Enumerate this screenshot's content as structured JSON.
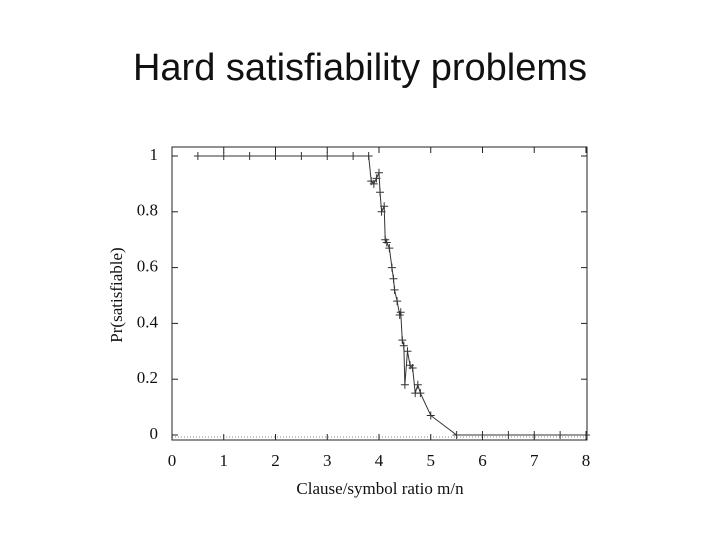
{
  "chart_data": {
    "type": "line",
    "title": "Hard satisfiability problems",
    "xlabel": "Clause/symbol ratio m/n",
    "ylabel": "Pr(satisfiable)",
    "x": [
      0.5,
      1,
      1.5,
      2,
      2.5,
      3,
      3.5,
      3.8,
      3.85,
      3.9,
      3.95,
      4.0,
      4.02,
      4.05,
      4.1,
      4.12,
      4.15,
      4.2,
      4.25,
      4.28,
      4.3,
      4.35,
      4.4,
      4.42,
      4.45,
      4.48,
      4.5,
      4.55,
      4.6,
      4.65,
      4.7,
      4.75,
      4.8,
      5.0,
      5.5,
      6,
      6.5,
      7,
      7.5,
      8
    ],
    "series": [
      {
        "name": "Pr(satisfiable)",
        "color": "#333333",
        "values": [
          1,
          1,
          1,
          1,
          1,
          1,
          1,
          1,
          0.91,
          0.9,
          0.92,
          0.94,
          0.87,
          0.8,
          0.82,
          0.7,
          0.69,
          0.67,
          0.6,
          0.56,
          0.52,
          0.48,
          0.43,
          0.44,
          0.34,
          0.32,
          0.18,
          0.3,
          0.25,
          0.24,
          0.15,
          0.18,
          0.15,
          0.07,
          0,
          0,
          0,
          0,
          0,
          0
        ]
      }
    ],
    "xlim": [
      0,
      8
    ],
    "xticks": [
      0,
      1,
      2,
      3,
      4,
      5,
      6,
      7,
      8
    ],
    "ylim": [
      0,
      1
    ],
    "yticks": [
      0,
      0.2,
      0.4,
      0.6,
      0.8,
      1
    ],
    "grid": false
  }
}
